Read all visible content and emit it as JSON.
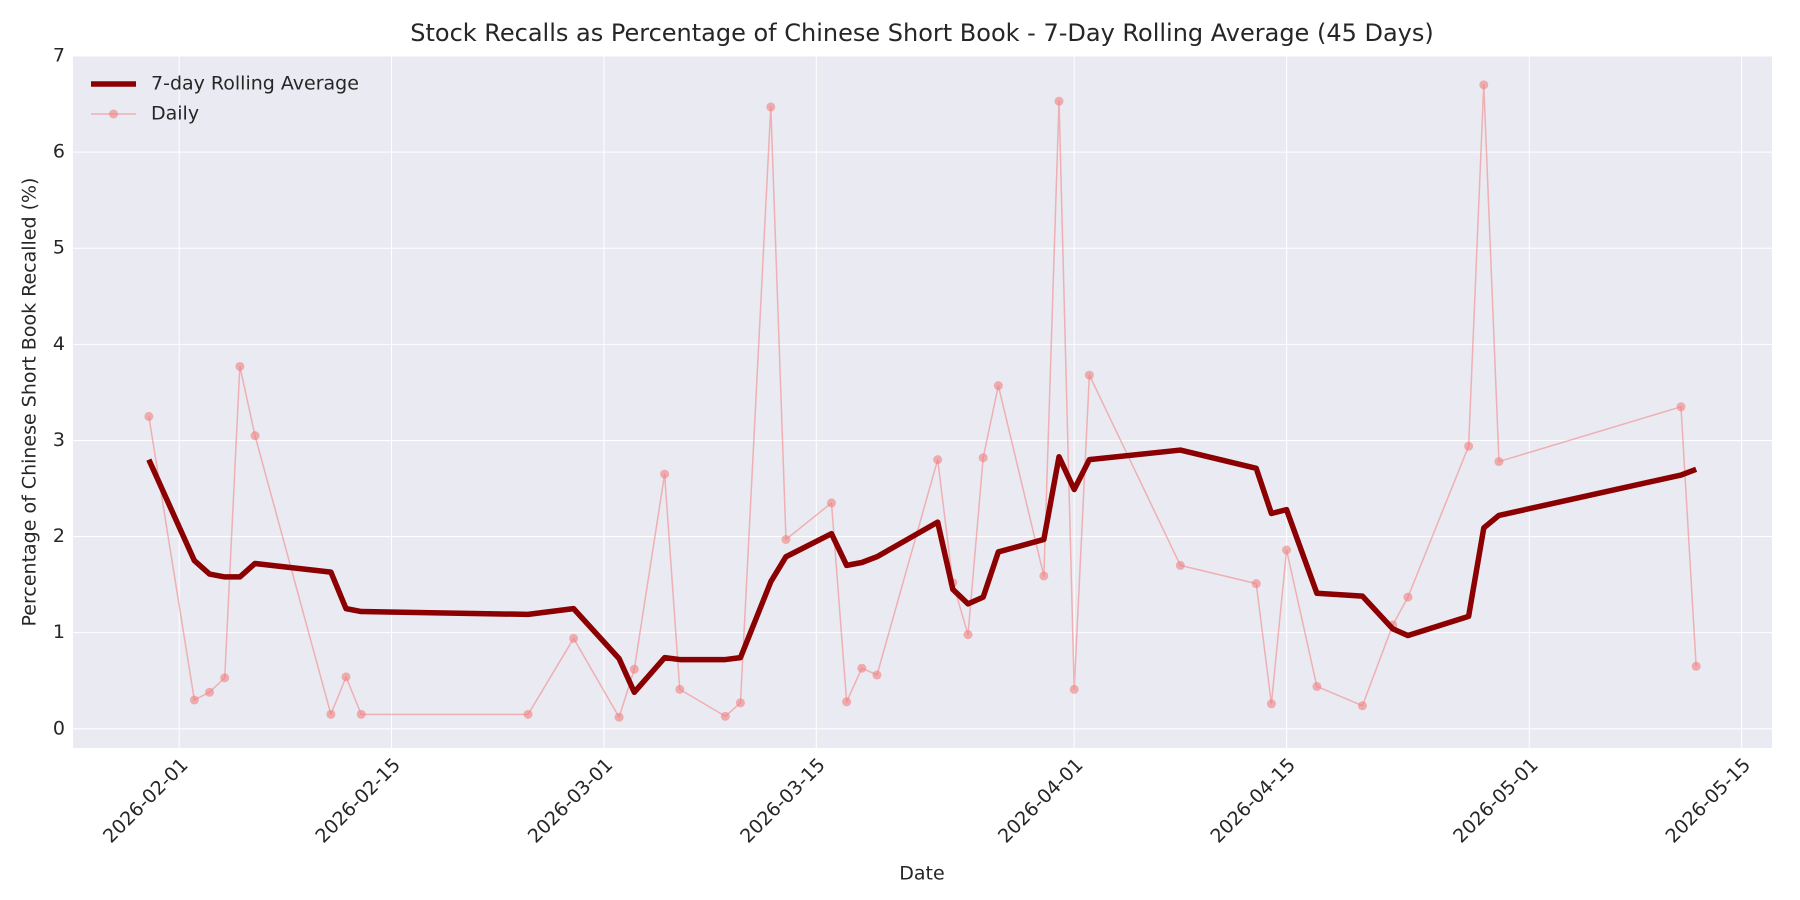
{
  "chart_data": {
    "type": "line",
    "title": "Stock Recalls as Percentage of Chinese Short Book - 7-Day Rolling Average (45 Days)",
    "x_label": "Date",
    "y_label": "Percentage of Chinese Short Book Recalled (%)",
    "x": [
      "2026-01-30",
      "2026-02-02",
      "2026-02-03",
      "2026-02-04",
      "2026-02-05",
      "2026-02-06",
      "2026-02-11",
      "2026-02-12",
      "2026-02-13",
      "2026-02-24",
      "2026-02-27",
      "2026-03-02",
      "2026-03-03",
      "2026-03-05",
      "2026-03-06",
      "2026-03-09",
      "2026-03-10",
      "2026-03-12",
      "2026-03-13",
      "2026-03-16",
      "2026-03-17",
      "2026-03-18",
      "2026-03-19",
      "2026-03-23",
      "2026-03-24",
      "2026-03-25",
      "2026-03-26",
      "2026-03-27",
      "2026-03-30",
      "2026-03-31",
      "2026-04-01",
      "2026-04-02",
      "2026-04-08",
      "2026-04-13",
      "2026-04-14",
      "2026-04-15",
      "2026-04-17",
      "2026-04-20",
      "2026-04-22",
      "2026-04-23",
      "2026-04-27",
      "2026-04-28",
      "2026-04-29",
      "2026-05-11",
      "2026-05-12"
    ],
    "series": [
      {
        "name": "7-day Rolling Average",
        "color": "#8b0000",
        "marker": false,
        "values": [
          2.8,
          1.75,
          1.61,
          1.58,
          1.58,
          1.72,
          1.63,
          1.25,
          1.22,
          1.19,
          1.25,
          0.73,
          0.38,
          0.74,
          0.72,
          0.72,
          0.74,
          1.53,
          1.79,
          2.03,
          1.7,
          1.73,
          1.79,
          2.15,
          1.45,
          1.3,
          1.37,
          1.84,
          1.97,
          2.83,
          2.49,
          2.8,
          2.9,
          2.71,
          2.24,
          2.28,
          1.41,
          1.38,
          1.04,
          0.97,
          1.17,
          2.09,
          2.22,
          2.64,
          2.7
        ]
      },
      {
        "name": "Daily",
        "color": "#f08080",
        "marker": true,
        "values": [
          3.25,
          0.3,
          0.38,
          0.53,
          3.77,
          3.05,
          0.15,
          0.54,
          0.15,
          0.15,
          0.94,
          0.12,
          0.62,
          2.65,
          0.41,
          0.13,
          0.27,
          6.47,
          1.97,
          2.35,
          0.28,
          0.63,
          0.56,
          2.8,
          1.52,
          0.98,
          2.82,
          3.57,
          1.59,
          6.53,
          0.41,
          3.68,
          1.7,
          1.51,
          0.26,
          1.86,
          0.44,
          0.24,
          1.08,
          1.37,
          2.94,
          6.7,
          2.78,
          3.35,
          0.65
        ]
      }
    ],
    "xlim": [
      "2026-01-25",
      "2026-05-17"
    ],
    "xticks": [
      "2026-02-01",
      "2026-02-15",
      "2026-03-01",
      "2026-03-15",
      "2026-04-01",
      "2026-04-15",
      "2026-05-01",
      "2026-05-15"
    ],
    "ylim": [
      -0.2,
      7.0
    ],
    "yticks": [
      0,
      1,
      2,
      3,
      4,
      5,
      6,
      7
    ],
    "grid": true,
    "legend": "upper-left"
  }
}
